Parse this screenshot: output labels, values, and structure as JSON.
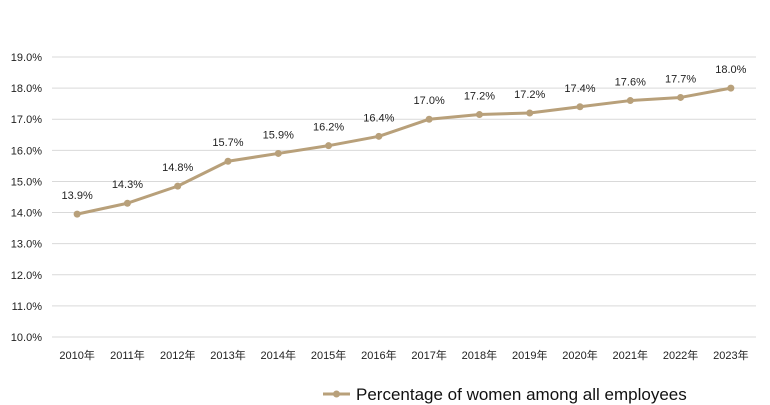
{
  "chart_data": {
    "type": "line",
    "title": "",
    "xlabel": "",
    "ylabel": "",
    "categories": [
      "2010年",
      "2011年",
      "2012年",
      "2013年",
      "2014年",
      "2015年",
      "2016年",
      "2017年",
      "2018年",
      "2019年",
      "2020年",
      "2021年",
      "2022年",
      "2023年"
    ],
    "series": [
      {
        "name": "Percentage of women among all employees",
        "values": [
          13.95,
          14.3,
          14.85,
          15.65,
          15.9,
          16.15,
          16.45,
          17.0,
          17.15,
          17.2,
          17.4,
          17.6,
          17.7,
          18.0
        ],
        "labels": [
          "13.9%",
          "14.3%",
          "14.8%",
          "15.7%",
          "15.9%",
          "16.2%",
          "16.4%",
          "17.0%",
          "17.2%",
          "17.2%",
          "17.4%",
          "17.6%",
          "17.7%",
          "18.0%"
        ],
        "color": "#b8a07a"
      }
    ],
    "ylim": [
      10.0,
      19.0
    ],
    "yticks": [
      "10.0%",
      "11.0%",
      "12.0%",
      "13.0%",
      "14.0%",
      "15.0%",
      "16.0%",
      "17.0%",
      "18.0%",
      "19.0%"
    ],
    "grid": true,
    "grid_color": "#d9d9d9",
    "legend_position": "bottom-right"
  }
}
